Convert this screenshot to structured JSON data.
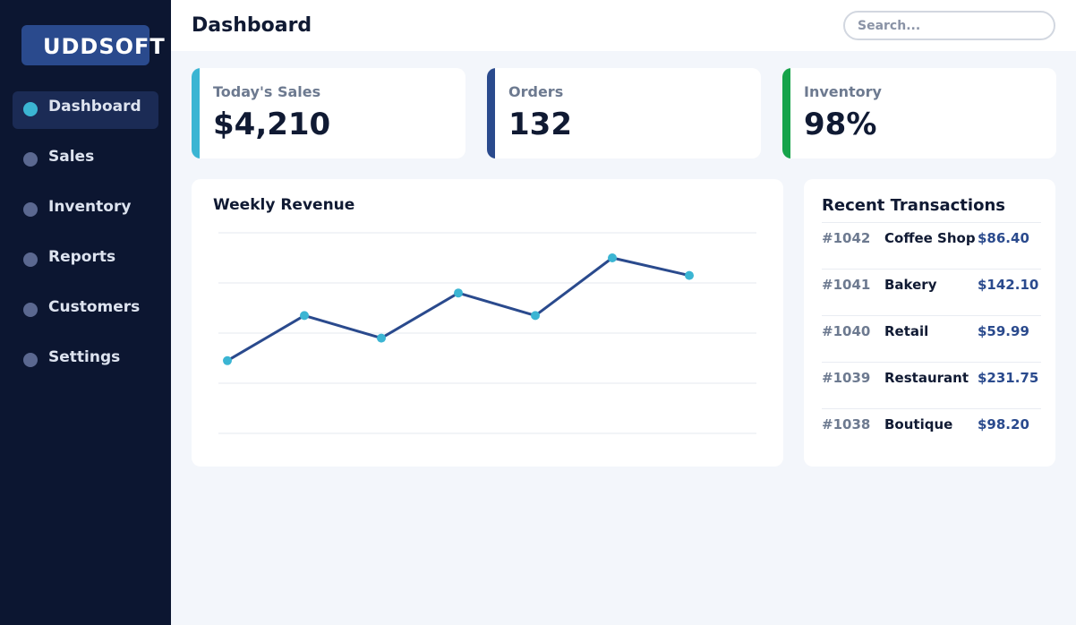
{
  "sidebar": {
    "logo": "UDDSOFT",
    "items": [
      {
        "label": "Dashboard",
        "active": true
      },
      {
        "label": "Sales",
        "active": false
      },
      {
        "label": "Inventory",
        "active": false
      },
      {
        "label": "Reports",
        "active": false
      },
      {
        "label": "Customers",
        "active": false
      },
      {
        "label": "Settings",
        "active": false
      }
    ]
  },
  "header": {
    "title": "Dashboard",
    "search_placeholder": "Search..."
  },
  "kpis": [
    {
      "label": "Today's Sales",
      "value": "$4,210",
      "color": "#3bb5d3"
    },
    {
      "label": "Orders",
      "value": "132",
      "color": "#2a4a8d"
    },
    {
      "label": "Inventory",
      "value": "98%",
      "color": "#16a34a"
    }
  ],
  "chart_data": {
    "type": "line",
    "title": "Weekly Revenue",
    "xlabel": "",
    "ylabel": "",
    "x": [
      1,
      2,
      3,
      4,
      5,
      6,
      7
    ],
    "values": [
      14.5,
      23.5,
      19,
      28,
      23.5,
      35,
      31.5
    ],
    "ylim": [
      0,
      40
    ],
    "grid": true,
    "line_color": "#2a4a8d",
    "point_color": "#3bb5d3"
  },
  "transactions": {
    "title": "Recent Transactions",
    "rows": [
      {
        "id": "#1042",
        "name": "Coffee Shop",
        "amount": "$86.40"
      },
      {
        "id": "#1041",
        "name": "Bakery",
        "amount": "$142.10"
      },
      {
        "id": "#1040",
        "name": "Retail",
        "amount": "$59.99"
      },
      {
        "id": "#1039",
        "name": "Restaurant",
        "amount": "$231.75"
      },
      {
        "id": "#1038",
        "name": "Boutique",
        "amount": "$98.20"
      }
    ]
  }
}
